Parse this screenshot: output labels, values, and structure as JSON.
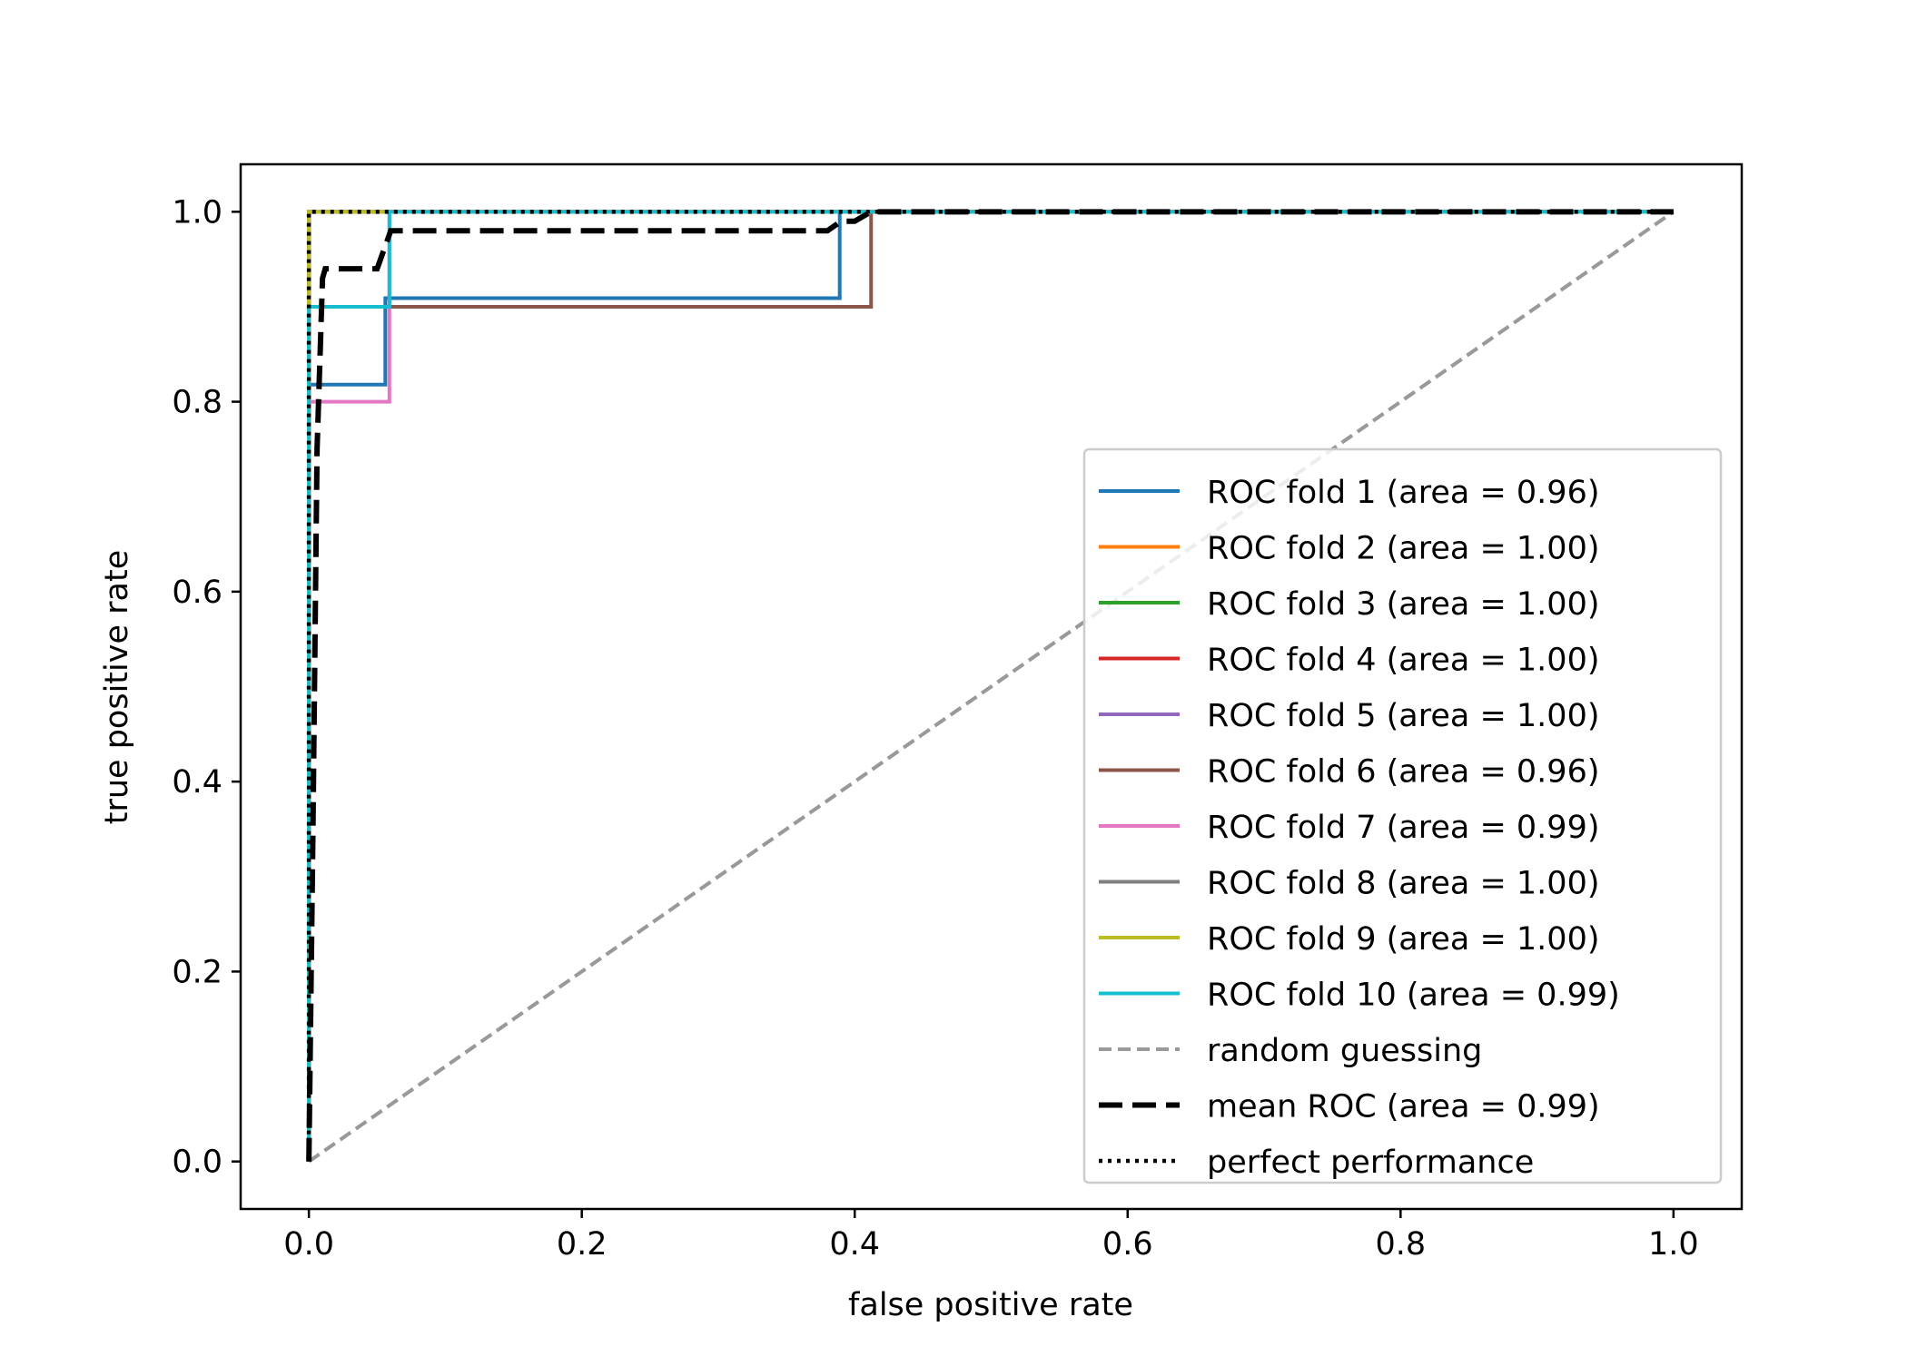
{
  "chart_data": {
    "type": "line",
    "title": "",
    "xlabel": "false positive rate",
    "ylabel": "true positive rate",
    "xlim": [
      -0.05,
      1.05
    ],
    "ylim": [
      -0.05,
      1.05
    ],
    "xticks": [
      "0.0",
      "0.2",
      "0.4",
      "0.6",
      "0.8",
      "1.0"
    ],
    "yticks": [
      "0.0",
      "0.2",
      "0.4",
      "0.6",
      "0.8",
      "1.0"
    ],
    "grid": false,
    "legend_position": "lower right",
    "series": [
      {
        "name": "ROC fold 1 (area = 0.96)",
        "color": "#1f77b4",
        "style": "solid",
        "x": [
          0,
          0,
          0.056,
          0.056,
          0.389,
          0.389,
          1.0
        ],
        "y": [
          0,
          0.818,
          0.818,
          0.909,
          0.909,
          1.0,
          1.0
        ]
      },
      {
        "name": "ROC fold 2 (area = 1.00)",
        "color": "#ff7f0e",
        "style": "solid",
        "x": [
          0,
          0,
          1.0
        ],
        "y": [
          0,
          1.0,
          1.0
        ]
      },
      {
        "name": "ROC fold 3 (area = 1.00)",
        "color": "#2ca02c",
        "style": "solid",
        "x": [
          0,
          0,
          1.0
        ],
        "y": [
          0,
          1.0,
          1.0
        ]
      },
      {
        "name": "ROC fold 4 (area = 1.00)",
        "color": "#d62728",
        "style": "solid",
        "x": [
          0,
          0,
          1.0
        ],
        "y": [
          0,
          1.0,
          1.0
        ]
      },
      {
        "name": "ROC fold 5 (area = 1.00)",
        "color": "#9467bd",
        "style": "solid",
        "x": [
          0,
          0,
          1.0
        ],
        "y": [
          0,
          1.0,
          1.0
        ]
      },
      {
        "name": "ROC fold 6 (area = 0.96)",
        "color": "#8c564b",
        "style": "solid",
        "x": [
          0,
          0,
          0.412,
          0.412,
          1.0
        ],
        "y": [
          0,
          0.9,
          0.9,
          1.0,
          1.0
        ]
      },
      {
        "name": "ROC fold 7 (area = 0.99)",
        "color": "#e377c2",
        "style": "solid",
        "x": [
          0,
          0,
          0.059,
          0.059,
          1.0
        ],
        "y": [
          0,
          0.8,
          0.8,
          1.0,
          1.0
        ]
      },
      {
        "name": "ROC fold 8 (area = 1.00)",
        "color": "#7f7f7f",
        "style": "solid",
        "x": [
          0,
          0,
          1.0
        ],
        "y": [
          0,
          1.0,
          1.0
        ]
      },
      {
        "name": "ROC fold 9 (area = 1.00)",
        "color": "#bcbd22",
        "style": "solid",
        "x": [
          0,
          0,
          1.0
        ],
        "y": [
          0,
          1.0,
          1.0
        ]
      },
      {
        "name": "ROC fold 10 (area = 0.99)",
        "color": "#17becf",
        "style": "solid",
        "x": [
          0,
          0,
          0.059,
          0.059,
          1.0
        ],
        "y": [
          0,
          0.9,
          0.9,
          1.0,
          1.0
        ]
      },
      {
        "name": "random guessing",
        "color": "#999999",
        "style": "dashed",
        "x": [
          0,
          1.0
        ],
        "y": [
          0,
          1.0
        ]
      },
      {
        "name": "mean ROC (area = 0.99)",
        "color": "#000000",
        "style": "longdash",
        "x": [
          0,
          0.003,
          0.006,
          0.01,
          0.012,
          0.05,
          0.06,
          0.06,
          0.38,
          0.39,
          0.4,
          0.412,
          1.0
        ],
        "y": [
          0,
          0.35,
          0.75,
          0.93,
          0.94,
          0.94,
          0.98,
          0.98,
          0.98,
          0.99,
          0.99,
          1.0,
          1.0
        ]
      },
      {
        "name": "perfect performance",
        "color": "#000000",
        "style": "dotted",
        "x": [
          0,
          0,
          1.0
        ],
        "y": [
          0,
          1.0,
          1.0
        ]
      }
    ]
  }
}
